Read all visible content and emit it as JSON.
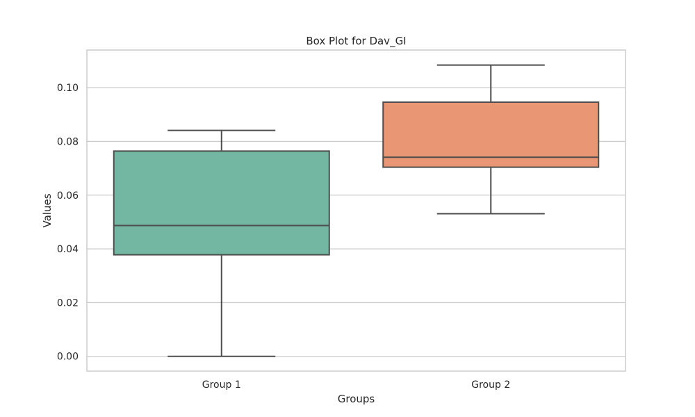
{
  "chart_data": {
    "type": "box",
    "title": "Box Plot for Dav_GI",
    "xlabel": "Groups",
    "ylabel": "Values",
    "ylim": [
      -0.0055,
      0.114
    ],
    "yticks": [
      "0.00",
      "0.02",
      "0.04",
      "0.06",
      "0.08",
      "0.10"
    ],
    "grid": true,
    "categories": [
      "Group 1",
      "Group 2"
    ],
    "boxes": [
      {
        "category": "Group 1",
        "whisker_low": 0.0,
        "q1": 0.0378,
        "median": 0.0487,
        "q3": 0.0764,
        "whisker_high": 0.0841,
        "color": "#73b6a1"
      },
      {
        "category": "Group 2",
        "whisker_low": 0.0531,
        "q1": 0.0704,
        "median": 0.0741,
        "q3": 0.0946,
        "whisker_high": 0.1084,
        "color": "#e99675"
      }
    ]
  },
  "colors": {
    "grid": "#cccccc",
    "frame": "#cccccc",
    "lines": "#4d4d4d",
    "text": "#262626"
  }
}
